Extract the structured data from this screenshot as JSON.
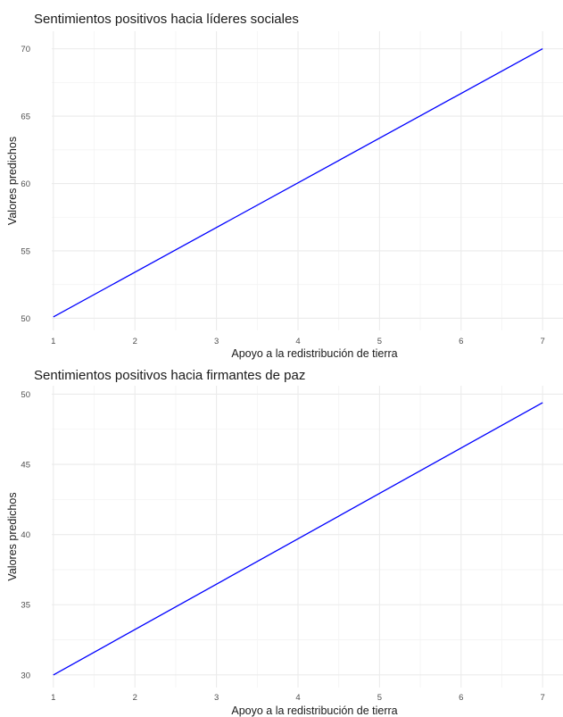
{
  "chart_data": [
    {
      "type": "line",
      "title": "Sentimientos positivos hacia líderes sociales",
      "xlabel": "Apoyo a la redistribución de tierra",
      "ylabel": "Valores predichos",
      "x_ticks": [
        "1",
        "2",
        "3",
        "4",
        "5",
        "6",
        "7"
      ],
      "y_ticks": [
        "50",
        "55",
        "60",
        "65",
        "70"
      ],
      "xlim": [
        0.98,
        7.25
      ],
      "ylim": [
        49.1,
        71.3
      ],
      "grid": true,
      "series": [
        {
          "x": [
            1,
            7
          ],
          "y": [
            50.1,
            70.0
          ],
          "color": "#0000ff"
        }
      ]
    },
    {
      "type": "line",
      "title": "Sentimientos positivos hacia firmantes de paz",
      "xlabel": "Apoyo a la redistribución de tierra",
      "ylabel": "Valores predichos",
      "x_ticks": [
        "1",
        "2",
        "3",
        "4",
        "5",
        "6",
        "7"
      ],
      "y_ticks": [
        "30",
        "35",
        "40",
        "45",
        "50"
      ],
      "xlim": [
        0.98,
        7.25
      ],
      "ylim": [
        29.1,
        50.6
      ],
      "grid": true,
      "series": [
        {
          "x": [
            1,
            7
          ],
          "y": [
            30.0,
            49.4
          ],
          "color": "#0000ff"
        }
      ]
    }
  ]
}
